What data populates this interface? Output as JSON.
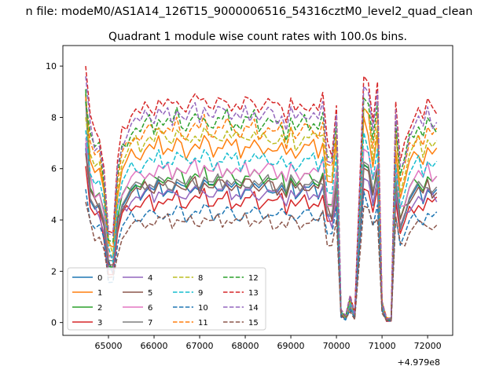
{
  "suptitle": "n file: modeM0/AS1A14_126T15_9000006516_54316cztM0_level2_quad_clean",
  "chart_data": {
    "type": "line",
    "title": "Quadrant 1 module wise count rates with 100.0s bins.",
    "xlabel": "",
    "ylabel": "",
    "x_offset_label": "+4.979e8",
    "xlim": [
      64000,
      72550
    ],
    "ylim": [
      -0.5,
      10.8
    ],
    "x_ticks": [
      65000,
      66000,
      67000,
      68000,
      69000,
      70000,
      71000,
      72000
    ],
    "x_tick_labels": [
      "65000",
      "66000",
      "67000",
      "68000",
      "69000",
      "70000",
      "71000",
      "72000"
    ],
    "y_ticks": [
      0,
      2,
      4,
      6,
      8,
      10
    ],
    "y_tick_labels": [
      "0",
      "2",
      "4",
      "6",
      "8",
      "10"
    ],
    "grid": false,
    "legend_position": "lower-left",
    "legend_columns": 4,
    "x": [
      64500,
      64600,
      64700,
      64800,
      64900,
      65000,
      65100,
      65200,
      65300,
      65400,
      65500,
      65600,
      65700,
      65800,
      65900,
      66000,
      66100,
      66200,
      66300,
      66400,
      66500,
      66600,
      66700,
      66800,
      66900,
      67000,
      67100,
      67200,
      67300,
      67400,
      67500,
      67600,
      67700,
      67800,
      67900,
      68000,
      68100,
      68200,
      68300,
      68400,
      68500,
      68600,
      68700,
      68800,
      68900,
      69000,
      69100,
      69200,
      69300,
      69400,
      69500,
      69600,
      69700,
      69800,
      69900,
      70000,
      70100,
      70200,
      70300,
      70400,
      70500,
      70600,
      70700,
      70800,
      70900,
      71000,
      71100,
      71200,
      71300,
      71400,
      71500,
      71600,
      71700,
      71800,
      71900,
      72000,
      72100,
      72200
    ],
    "series": [
      {
        "name": "0",
        "color": "#1f77b4",
        "linestyle": "solid",
        "baseline": 5.3,
        "start": 6.8
      },
      {
        "name": "1",
        "color": "#ff7f0e",
        "linestyle": "solid",
        "baseline": 6.9,
        "start": 8.9
      },
      {
        "name": "2",
        "color": "#2ca02c",
        "linestyle": "solid",
        "baseline": 5.7,
        "start": 9.1
      },
      {
        "name": "3",
        "color": "#d62728",
        "linestyle": "solid",
        "baseline": 4.8,
        "start": 6.1
      },
      {
        "name": "4",
        "color": "#9467bd",
        "linestyle": "solid",
        "baseline": 5.1,
        "start": 7.0
      },
      {
        "name": "5",
        "color": "#8c564b",
        "linestyle": "solid",
        "baseline": 5.4,
        "start": 6.6
      },
      {
        "name": "6",
        "color": "#e377c2",
        "linestyle": "solid",
        "baseline": 6.0,
        "start": 7.2
      },
      {
        "name": "7",
        "color": "#7f7f7f",
        "linestyle": "solid",
        "baseline": 5.5,
        "start": 8.7
      },
      {
        "name": "8",
        "color": "#bcbd22",
        "linestyle": "dashed",
        "baseline": 7.3,
        "start": 8.0
      },
      {
        "name": "9",
        "color": "#17becf",
        "linestyle": "dashed",
        "baseline": 6.4,
        "start": 7.5
      },
      {
        "name": "10",
        "color": "#1f77b4",
        "linestyle": "dashed",
        "baseline": 4.3,
        "start": 5.2
      },
      {
        "name": "11",
        "color": "#ff7f0e",
        "linestyle": "dashed",
        "baseline": 7.6,
        "start": 8.8
      },
      {
        "name": "12",
        "color": "#2ca02c",
        "linestyle": "dashed",
        "baseline": 7.9,
        "start": 8.6
      },
      {
        "name": "13",
        "color": "#d62728",
        "linestyle": "dashed",
        "baseline": 8.6,
        "start": 10.0
      },
      {
        "name": "14",
        "color": "#9467bd",
        "linestyle": "dashed",
        "baseline": 8.2,
        "start": 9.6
      },
      {
        "name": "15",
        "color": "#8c564b",
        "linestyle": "dashed",
        "baseline": 4.0,
        "start": 4.7
      }
    ],
    "profile": [
      1.0,
      0.93,
      0.85,
      0.86,
      0.72,
      0.42,
      0.4,
      0.72,
      0.86,
      0.9,
      0.95,
      0.97,
      0.94,
      0.98,
      1.0,
      0.96,
      1.02,
      0.98,
      1.0,
      0.97,
      1.03,
      0.99,
      0.96,
      1.0,
      1.02,
      0.98,
      1.04,
      0.99,
      0.97,
      1.01,
      0.99,
      1.03,
      0.98,
      1.0,
      0.96,
      1.01,
      0.99,
      1.02,
      0.97,
      0.99,
      1.01,
      0.98,
      0.97,
      1.0,
      0.92,
      1.02,
      0.95,
      0.97,
      1.0,
      0.98,
      1.0,
      0.96,
      1.03,
      0.8,
      0.78,
      1.0,
      0.06,
      0.03,
      0.12,
      0.04,
      0.6,
      1.13,
      1.09,
      0.9,
      1.07,
      0.1,
      0.02,
      0.02,
      1.0,
      0.72,
      0.8,
      0.9,
      0.94,
      0.98,
      0.92,
      1.0,
      0.95,
      0.97
    ]
  }
}
